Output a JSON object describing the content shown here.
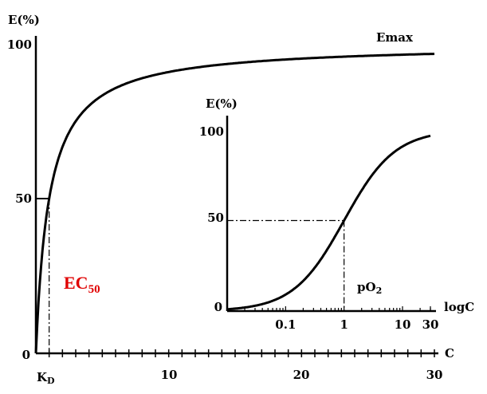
{
  "chart_data": [
    {
      "type": "line",
      "ylabel": "E(%)",
      "xlabel": "C",
      "yticks": [
        "0",
        "50",
        "100"
      ],
      "xticks": [
        "10",
        "20",
        "30"
      ],
      "xlim": [
        0,
        30
      ],
      "ylim": [
        0,
        100
      ],
      "kd_label": "K",
      "kd_sub": "D",
      "kd_value": 1,
      "emax_label": "Emax",
      "ec50_label": "EC",
      "ec50_sub": "50",
      "ec50_color": "#e00000",
      "series": [
        {
          "x": [
            0,
            0.5,
            1,
            2,
            3,
            5,
            7,
            10,
            15,
            20,
            25,
            30
          ],
          "y": [
            0,
            33,
            50,
            67,
            75,
            83,
            88,
            91,
            94,
            95,
            96,
            97
          ]
        }
      ]
    },
    {
      "type": "line",
      "ylabel": "E(%)",
      "xlabel": "logC",
      "scale": "log",
      "yticks": [
        "0",
        "50",
        "100"
      ],
      "xticks": [
        "0.1",
        "1",
        "10",
        "30"
      ],
      "xlim": [
        0.01,
        30
      ],
      "ylim": [
        0,
        100
      ],
      "annotation": "pO",
      "annotation_sub": "2",
      "series": [
        {
          "x": [
            0.01,
            0.03,
            0.1,
            0.3,
            1,
            3,
            10,
            30
          ],
          "y": [
            1,
            3,
            9,
            23,
            50,
            75,
            91,
            97
          ]
        }
      ]
    }
  ]
}
